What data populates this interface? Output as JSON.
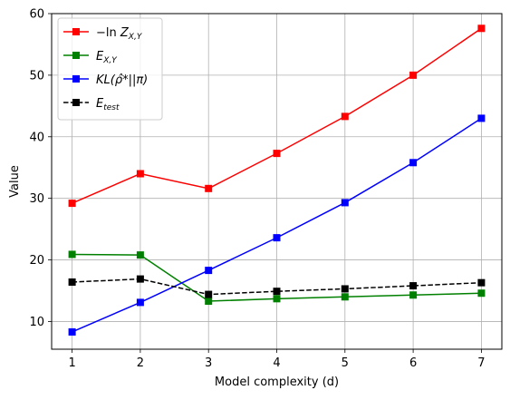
{
  "chart_data": {
    "type": "line",
    "xlabel": "Model complexity (d)",
    "ylabel": "Value",
    "x": [
      1,
      2,
      3,
      4,
      5,
      6,
      7
    ],
    "xlim": [
      0.7,
      7.3
    ],
    "ylim": [
      5.5,
      60
    ],
    "xticks": [
      1,
      2,
      3,
      4,
      5,
      6,
      7
    ],
    "yticks": [
      10,
      20,
      30,
      40,
      50,
      60
    ],
    "grid": true,
    "legend_position": "upper-left",
    "series": [
      {
        "name": "−ln Z_{X,Y}",
        "color": "#ff0000",
        "dash": "solid",
        "marker": "square",
        "values": [
          29.2,
          34.0,
          31.6,
          37.3,
          43.3,
          50.0,
          57.6
        ]
      },
      {
        "name": "E_{X,Y}",
        "color": "#008000",
        "dash": "solid",
        "marker": "square",
        "values": [
          20.9,
          20.8,
          13.3,
          13.7,
          14.0,
          14.3,
          14.6
        ]
      },
      {
        "name": "KL(ρ̂*||π)",
        "color": "#0000ff",
        "dash": "solid",
        "marker": "square",
        "values": [
          8.3,
          13.1,
          18.3,
          23.6,
          29.3,
          35.8,
          43.0
        ]
      },
      {
        "name": "E_test",
        "color": "#000000",
        "dash": "dashed",
        "marker": "square",
        "values": [
          16.4,
          16.9,
          14.4,
          14.9,
          15.3,
          15.8,
          16.3
        ]
      }
    ]
  }
}
